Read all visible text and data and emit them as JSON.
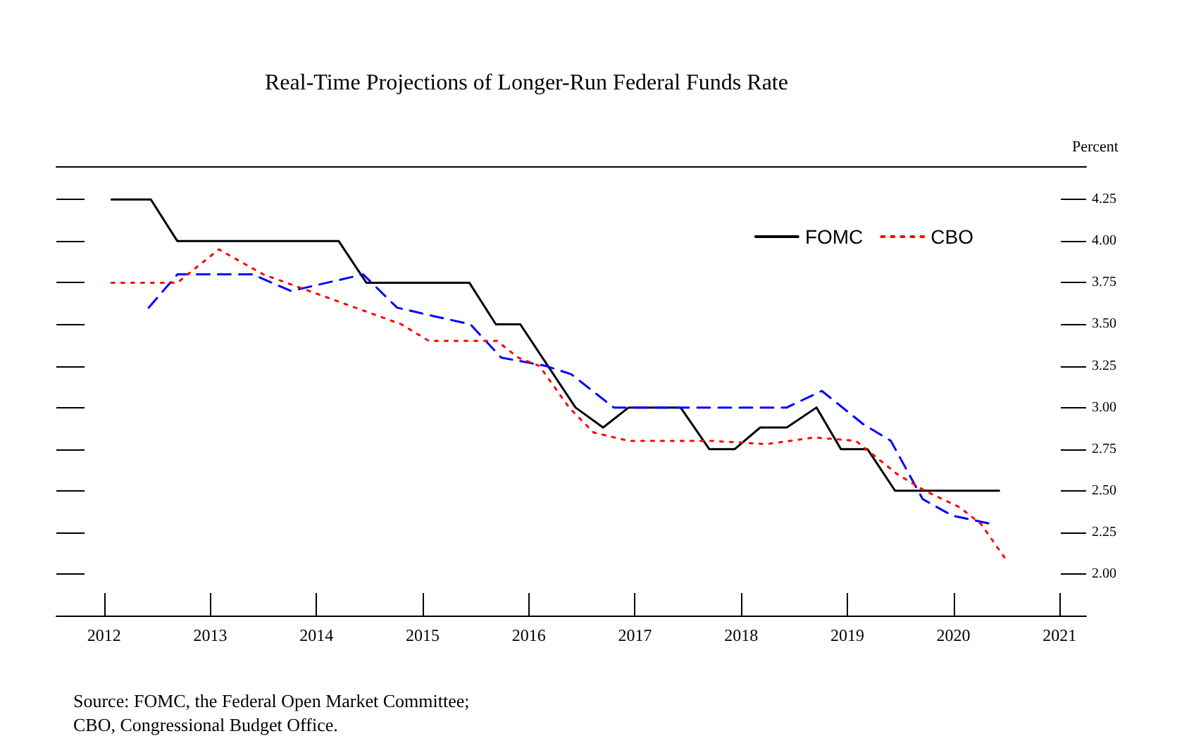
{
  "chart_data": {
    "type": "line",
    "title": "Real-Time Projections of Longer-Run Federal Funds Rate",
    "ylabel": "Percent",
    "xlim": [
      2011.55,
      2021.25
    ],
    "xticks": [
      2012,
      2013,
      2014,
      2015,
      2016,
      2017,
      2018,
      2019,
      2020,
      2021
    ],
    "ylim": [
      1.75,
      4.45
    ],
    "yticks": [
      {
        "value": 2,
        "label": "2.00"
      },
      {
        "value": 2.25,
        "label": "2.25"
      },
      {
        "value": 2.5,
        "label": "2.50"
      },
      {
        "value": 2.75,
        "label": "2.75"
      },
      {
        "value": 3,
        "label": "3.00"
      },
      {
        "value": 3.25,
        "label": "3.25"
      },
      {
        "value": 3.5,
        "label": "3.50"
      },
      {
        "value": 3.75,
        "label": "3.75"
      },
      {
        "value": 4,
        "label": "4.00"
      },
      {
        "value": 4.25,
        "label": "4.25"
      }
    ],
    "grid": false,
    "legend": "top right",
    "marker": "none",
    "series": [
      {
        "name": "FOMC",
        "color": "#000000",
        "line_style": "solid",
        "x": [
          2012.07,
          2012.44,
          2012.69,
          2014.21,
          2014.47,
          2015.44,
          2015.69,
          2015.92,
          2016.44,
          2016.7,
          2016.94,
          2017.43,
          2017.7,
          2017.94,
          2018.18,
          2018.43,
          2018.71,
          2018.94,
          2019.19,
          2019.45,
          2020.43
        ],
        "values": [
          4.25,
          4.25,
          4.0,
          4.0,
          3.75,
          3.75,
          3.5,
          3.5,
          3.0,
          2.88,
          3.0,
          3.0,
          2.75,
          2.75,
          2.88,
          2.88,
          3.0,
          2.75,
          2.75,
          2.5,
          2.5
        ]
      },
      {
        "color": "#0000ff",
        "line_style": "dashed",
        "x": [
          2012.42,
          2012.69,
          2013.4,
          2013.76,
          2014.44,
          2014.76,
          2015.1,
          2015.45,
          2015.74,
          2016.16,
          2016.4,
          2016.8,
          2018.43,
          2018.76,
          2019.15,
          2019.41,
          2019.71,
          2019.99,
          2020.36
        ],
        "values": [
          3.6,
          3.8,
          3.8,
          3.7,
          3.8,
          3.6,
          3.55,
          3.5,
          3.3,
          3.25,
          3.2,
          3.0,
          3.0,
          3.1,
          2.9,
          2.8,
          2.45,
          2.35,
          2.3
        ]
      },
      {
        "name": "CBO",
        "color": "#ff0000",
        "line_style": "dotted",
        "x": [
          2012.07,
          2012.69,
          2013.08,
          2013.5,
          2014.15,
          2014.8,
          2015.06,
          2015.7,
          2015.9,
          2016.1,
          2016.38,
          2016.61,
          2016.94,
          2017.72,
          2018.24,
          2018.69,
          2019.08,
          2019.47,
          2019.73,
          2020.06,
          2020.26,
          2020.48
        ],
        "values": [
          3.75,
          3.75,
          3.95,
          3.8,
          3.65,
          3.5,
          3.4,
          3.4,
          3.3,
          3.25,
          3.0,
          2.85,
          2.8,
          2.8,
          2.78,
          2.82,
          2.8,
          2.6,
          2.5,
          2.4,
          2.3,
          2.1
        ]
      }
    ],
    "annotations": [
      "Source: FOMC, the Federal Open Market Committee;",
      "CBO, Congressional Budget Office."
    ]
  }
}
